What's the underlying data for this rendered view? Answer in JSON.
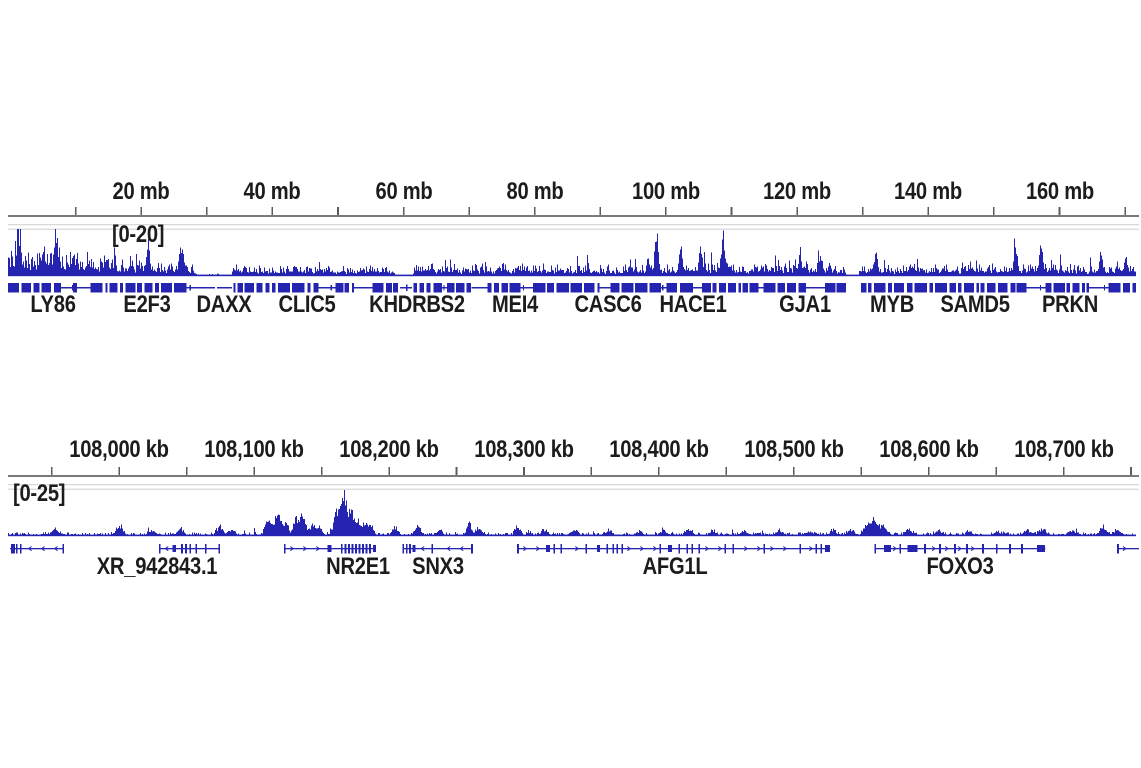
{
  "page": {
    "background": "#ffffff",
    "colors": {
      "signal_blue": "#2424b0",
      "text": "#1c1c1c",
      "ruler_line": "#7a7a7a",
      "tick": "#5c5c5c",
      "separator_gray": "#d9d9d9"
    }
  },
  "chart_data": [
    {
      "type": "area",
      "track": "chromosome-overview",
      "ruler": {
        "unit": "mb",
        "domain_start": 0,
        "domain_end": 170.9,
        "tick_values": [
          10,
          20,
          30,
          40,
          50,
          60,
          70,
          80,
          90,
          100,
          110,
          120,
          130,
          140,
          150,
          160,
          170
        ],
        "labels": [
          {
            "text": "20 mb",
            "value": 20
          },
          {
            "text": "40 mb",
            "value": 40
          },
          {
            "text": "60 mb",
            "value": 60
          },
          {
            "text": "80 mb",
            "value": 80
          },
          {
            "text": "100 mb",
            "value": 100
          },
          {
            "text": "120 mb",
            "value": 120
          },
          {
            "text": "140 mb",
            "value": 140
          },
          {
            "text": "160 mb",
            "value": 160
          }
        ]
      },
      "signal": {
        "range_label": "[0-20]",
        "range": [
          0,
          20
        ],
        "color": "#2424b0",
        "noise_seed": 101,
        "segments": [
          [
            0,
            1.6,
            5.1,
            10.2,
            0.12,
            9.4
          ],
          [
            1.6,
            13.5,
            4.3,
            7.7,
            0.09,
            9.4
          ],
          [
            13.5,
            20.5,
            3.4,
            5.5,
            0.06,
            7.7
          ],
          [
            20.5,
            27.8,
            2.1,
            4.3,
            0.05,
            6.0
          ],
          [
            27.8,
            33.8,
            0.34,
            0.77,
            0.02,
            1.3
          ],
          [
            33.8,
            58.6,
            1.9,
            3.2,
            0.04,
            5.1
          ],
          [
            58.6,
            61.3,
            0.2,
            0.5,
            0,
            0
          ],
          [
            61.3,
            96,
            2.1,
            3.6,
            0.05,
            6.0
          ],
          [
            96,
            110,
            2.3,
            3.8,
            0.05,
            6.4
          ],
          [
            110,
            127.2,
            2.1,
            3.6,
            0.05,
            5.5
          ],
          [
            127.2,
            129.35,
            0.02,
            0.17,
            0,
            0
          ],
          [
            129.35,
            172,
            2.1,
            3.6,
            0.05,
            6.0
          ]
        ],
        "peaks": [
          [
            1.2,
            17,
            1.5
          ],
          [
            6.9,
            16.2,
            1.5
          ],
          [
            21,
            13.6,
            1.5
          ],
          [
            26.1,
            11.5,
            1.5
          ],
          [
            98.5,
            17,
            1.5
          ],
          [
            102.2,
            10.2,
            1.5
          ],
          [
            105.2,
            11.9,
            1.5
          ],
          [
            108.6,
            18.3,
            1.5
          ],
          [
            120.4,
            7.7,
            1.5
          ],
          [
            123.5,
            7.7,
            1.5
          ],
          [
            131.9,
            8.5,
            1.5
          ],
          [
            153.2,
            14,
            1.5
          ],
          [
            157.1,
            11.1,
            1.5
          ],
          [
            166.2,
            7.7,
            1.5
          ],
          [
            170,
            6.4,
            1.5
          ]
        ]
      },
      "gene_track": {
        "style": "dense",
        "color": "#2424b0",
        "pattern_seed": 2024,
        "gaps": [
          [
            127.25,
            129.6
          ]
        ],
        "sparse": [
          [
            29.0,
            33.5
          ],
          [
            58.8,
            61.4
          ]
        ],
        "labels": [
          {
            "text": "LY86",
            "pos": 6.6
          },
          {
            "text": "E2F3",
            "pos": 20.9
          },
          {
            "text": "DAXX",
            "pos": 32.6
          },
          {
            "text": "CLIC5",
            "pos": 45.3
          },
          {
            "text": "KHDRBS2",
            "pos": 62.0
          },
          {
            "text": "MEI4",
            "pos": 77.0
          },
          {
            "text": "CASC6",
            "pos": 91.2
          },
          {
            "text": "HACE1",
            "pos": 104.1
          },
          {
            "text": "GJA1",
            "pos": 121.2
          },
          {
            "text": "MYB",
            "pos": 134.5
          },
          {
            "text": "SAMD5",
            "pos": 147.1
          },
          {
            "text": "PRKN",
            "pos": 161.6
          }
        ]
      }
    },
    {
      "type": "area",
      "track": "zoomed-region",
      "ruler": {
        "unit": "kb",
        "domain_start": 107919,
        "domain_end": 108750,
        "tick_values": [
          107950,
          108000,
          108050,
          108100,
          108150,
          108200,
          108250,
          108300,
          108350,
          108400,
          108450,
          108500,
          108550,
          108600,
          108650,
          108700,
          108750
        ],
        "labels": [
          {
            "text": "108,000 kb",
            "value": 108000
          },
          {
            "text": "108,100 kb",
            "value": 108100
          },
          {
            "text": "108,200 kb",
            "value": 108200
          },
          {
            "text": "108,300 kb",
            "value": 108300
          },
          {
            "text": "108,400 kb",
            "value": 108400
          },
          {
            "text": "108,500 kb",
            "value": 108500
          },
          {
            "text": "108,600 kb",
            "value": 108600
          },
          {
            "text": "108,700 kb",
            "value": 108700
          }
        ]
      },
      "signal": {
        "range_label": "[0-25]",
        "range": [
          0,
          25
        ],
        "color": "#2424b0",
        "noise_seed": 202,
        "segments": [
          [
            107910,
            108760,
            0.64,
            1.5,
            0.015,
            2.7
          ]
        ],
        "peaks": [
          [
            107952,
            3.2,
            3
          ],
          [
            108000,
            5.3,
            3
          ],
          [
            108024,
            2.7,
            3
          ],
          [
            108045,
            3.7,
            3
          ],
          [
            108074,
            4.8,
            3
          ],
          [
            108083,
            3.2,
            3
          ],
          [
            108110,
            8.5,
            3
          ],
          [
            108117,
            12.8,
            3
          ],
          [
            108123,
            6.9,
            3
          ],
          [
            108131,
            10.6,
            2.5
          ],
          [
            108136,
            12.8,
            2.5
          ],
          [
            108143,
            6.4,
            2.5
          ],
          [
            108148,
            4.8,
            2.5
          ],
          [
            108161,
            13.8,
            3
          ],
          [
            108166.5,
            23.4,
            3
          ],
          [
            108172,
            13.8,
            2.5
          ],
          [
            108177,
            8,
            2.5
          ],
          [
            108182,
            5.9,
            2.5
          ],
          [
            108186,
            6.9,
            2.5
          ],
          [
            108204,
            4.3,
            2.5
          ],
          [
            108221,
            6.4,
            2.5
          ],
          [
            108237,
            3.2,
            2.5
          ],
          [
            108259,
            8,
            2
          ],
          [
            108266,
            4.3,
            2.5
          ],
          [
            108295,
            4.8,
            2.5
          ],
          [
            108315,
            2.7,
            3
          ],
          [
            108337,
            3.2,
            3
          ],
          [
            108363,
            2.7,
            3
          ],
          [
            108385,
            2.1,
            3
          ],
          [
            108403,
            2.7,
            3
          ],
          [
            108422,
            3.2,
            3
          ],
          [
            108440,
            2.1,
            3
          ],
          [
            108463,
            2.7,
            3
          ],
          [
            108489,
            2.7,
            3
          ],
          [
            108511,
            2.1,
            3
          ],
          [
            108529,
            2.7,
            3
          ],
          [
            108542,
            3.2,
            3
          ],
          [
            108554,
            6.4,
            3
          ],
          [
            108560,
            10.1,
            3
          ],
          [
            108566,
            5.3,
            3
          ],
          [
            108585,
            3.2,
            3
          ],
          [
            108607,
            2.7,
            3
          ],
          [
            108629,
            2.1,
            3
          ],
          [
            108651,
            2.1,
            3
          ],
          [
            108673,
            2.7,
            3
          ],
          [
            108684,
            3.7,
            3
          ],
          [
            108706,
            2.7,
            3
          ],
          [
            108729,
            5.3,
            3
          ],
          [
            108739,
            2.7,
            3
          ]
        ]
      },
      "gene_track": {
        "style": "transcript",
        "color": "#2424b0",
        "genes": [
          {
            "strand": "-",
            "span": [
              107919,
              107959
            ],
            "exons": [
              [
                107920.5,
                1,
                "t"
              ],
              [
                107922,
                1,
                "t"
              ],
              [
                107924,
                1,
                "t"
              ],
              [
                107927,
                1.6,
                "t"
              ],
              [
                107958.5,
                1,
                "t"
              ]
            ]
          },
          {
            "strand": "-",
            "span": [
              108030,
              108074
            ],
            "exons": [
              [
                108030,
                1,
                "t"
              ],
              [
                108039.5,
                2.6,
                "b"
              ],
              [
                108046.5,
                1,
                "t"
              ],
              [
                108049.5,
                1,
                "t"
              ],
              [
                108052.5,
                1,
                "t"
              ],
              [
                108057,
                1,
                "t"
              ],
              [
                108064,
                1,
                "t"
              ],
              [
                108074,
                1,
                "t"
              ]
            ]
          },
          {
            "strand": "+",
            "span": [
              108122.8,
              108188
            ],
            "exons": [
              [
                108122.8,
                1,
                "t"
              ],
              [
                108154.5,
                3,
                "b"
              ],
              [
                108165,
                1,
                "t"
              ],
              [
                108167.7,
                1,
                "t"
              ],
              [
                108170.3,
                1,
                "t"
              ],
              [
                108172.9,
                1,
                "t"
              ],
              [
                108175.5,
                1,
                "t"
              ],
              [
                108178.1,
                1,
                "t"
              ],
              [
                108180.7,
                1,
                "t"
              ],
              [
                108183.3,
                1,
                "t"
              ],
              [
                108185.9,
                1,
                "t"
              ],
              [
                108188,
                1.9,
                "b"
              ]
            ]
          },
          {
            "strand": "-",
            "span": [
              108210,
              108262
            ],
            "exons": [
              [
                108210.5,
                1,
                "t"
              ],
              [
                108213,
                1,
                "t"
              ],
              [
                108215.5,
                1,
                "t"
              ],
              [
                108217.5,
                1.9,
                "b"
              ],
              [
                108232,
                1,
                "t"
              ],
              [
                108261.5,
                1,
                "t"
              ]
            ]
          },
          {
            "strand": "+",
            "span": [
              108295.5,
              108527
            ],
            "exons": [
              [
                108295.6,
                1,
                "t"
              ],
              [
                108316.5,
                3,
                "b"
              ],
              [
                108322.4,
                1,
                "t"
              ],
              [
                108327.6,
                1,
                "t"
              ],
              [
                108346.1,
                1,
                "t"
              ],
              [
                108354.3,
                2.2,
                "b"
              ],
              [
                108361.7,
                1,
                "t"
              ],
              [
                108366.1,
                1,
                "t"
              ],
              [
                108369.1,
                1,
                "t"
              ],
              [
                108372.8,
                1,
                "t"
              ],
              [
                108401,
                1,
                "t"
              ],
              [
                108406.9,
                3,
                "b"
              ],
              [
                108415.1,
                1,
                "t"
              ],
              [
                108421,
                1,
                "t"
              ],
              [
                108424.7,
                1,
                "t"
              ],
              [
                108429.9,
                1,
                "t"
              ],
              [
                108449.2,
                1,
                "t"
              ],
              [
                108455.1,
                1,
                "t"
              ],
              [
                108478.1,
                1,
                "t"
              ],
              [
                108504.8,
                1,
                "t"
              ],
              [
                108516.6,
                1,
                "t"
              ],
              [
                108520.3,
                1,
                "t"
              ],
              [
                108523,
                3.7,
                "b"
              ]
            ]
          },
          {
            "strand": "+",
            "span": [
              108560,
              108686.5
            ],
            "exons": [
              [
                108560.3,
                1,
                "t"
              ],
              [
                108567,
                5.2,
                "b"
              ],
              [
                108578.8,
                1,
                "t"
              ],
              [
                108584.5,
                7.4,
                "b"
              ],
              [
                108597.3,
                1,
                "t"
              ],
              [
                108608.4,
                1,
                "t"
              ],
              [
                108619.5,
                1,
                "t"
              ],
              [
                108628.4,
                1,
                "t"
              ],
              [
                108640.3,
                1,
                "t"
              ],
              [
                108650.6,
                1,
                "t"
              ],
              [
                108660.3,
                1,
                "t"
              ],
              [
                108669.2,
                1,
                "t"
              ],
              [
                108680.5,
                5.9,
                "b"
              ]
            ]
          },
          {
            "strand": "+",
            "span": [
              108740,
              108756
            ],
            "exons": [
              [
                108740.4,
                1,
                "t"
              ]
            ]
          }
        ],
        "labels": [
          {
            "text": "XR_942843.1",
            "pos": 108028
          },
          {
            "text": "NR2E1",
            "pos": 108177
          },
          {
            "text": "SNX3",
            "pos": 108236
          },
          {
            "text": "AFG1L",
            "pos": 108412
          },
          {
            "text": "FOXO3",
            "pos": 108623
          }
        ]
      }
    }
  ]
}
